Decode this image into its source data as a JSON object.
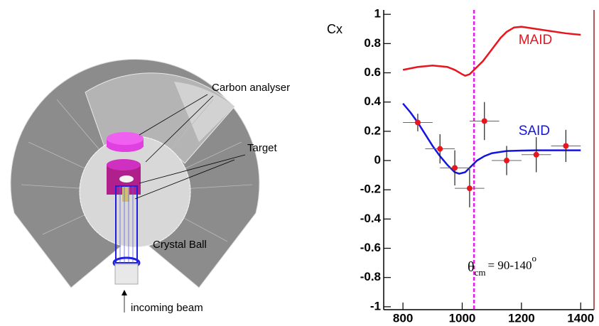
{
  "diagram": {
    "labels": [
      "Carbon analyser",
      "Target",
      "Crystal Ball",
      "incoming beam"
    ]
  },
  "chart_data": {
    "type": "line",
    "y_label": "Cx",
    "annotation": {
      "symbol": "θ",
      "subscript": "cm",
      "text": "= 90-140",
      "superscript": "o"
    },
    "xlim": [
      735,
      1445
    ],
    "xticks": [
      800,
      1000,
      1200,
      1400
    ],
    "ylim": [
      -1.02,
      1.03
    ],
    "yticks": [
      1,
      0.8,
      0.6,
      0.4,
      0.2,
      0,
      -0.2,
      -0.4,
      -0.6,
      -0.8,
      -1
    ],
    "vline": 1040,
    "vline_color": "#e020e0",
    "series": [
      {
        "name": "MAID",
        "color": "#e8141e",
        "x": [
          800,
          850,
          900,
          950,
          975,
          1000,
          1010,
          1025,
          1040,
          1070,
          1100,
          1130,
          1150,
          1175,
          1200,
          1250,
          1300,
          1350,
          1400
        ],
        "values": [
          0.62,
          0.64,
          0.65,
          0.64,
          0.62,
          0.59,
          0.58,
          0.59,
          0.62,
          0.68,
          0.76,
          0.84,
          0.88,
          0.91,
          0.915,
          0.9,
          0.885,
          0.87,
          0.86
        ]
      },
      {
        "name": "SAID",
        "color": "#1414e0",
        "x": [
          800,
          825,
          850,
          875,
          900,
          925,
          950,
          975,
          990,
          1010,
          1030,
          1050,
          1075,
          1100,
          1150,
          1200,
          1250,
          1300,
          1400
        ],
        "values": [
          0.39,
          0.33,
          0.26,
          0.18,
          0.1,
          0.03,
          -0.03,
          -0.08,
          -0.09,
          -0.08,
          -0.04,
          0.0,
          0.03,
          0.05,
          0.065,
          0.068,
          0.07,
          0.07,
          0.07
        ]
      }
    ],
    "points": {
      "color": "#e8141e",
      "x": [
        850,
        925,
        975,
        1025,
        1075,
        1150,
        1250,
        1350
      ],
      "values": [
        0.26,
        0.08,
        -0.05,
        -0.19,
        0.27,
        0.0,
        0.04,
        0.1
      ],
      "yerr": [
        0.06,
        0.1,
        0.12,
        0.13,
        0.13,
        0.1,
        0.12,
        0.11
      ],
      "xerr": [
        50,
        50,
        50,
        50,
        50,
        50,
        50,
        50
      ]
    }
  }
}
